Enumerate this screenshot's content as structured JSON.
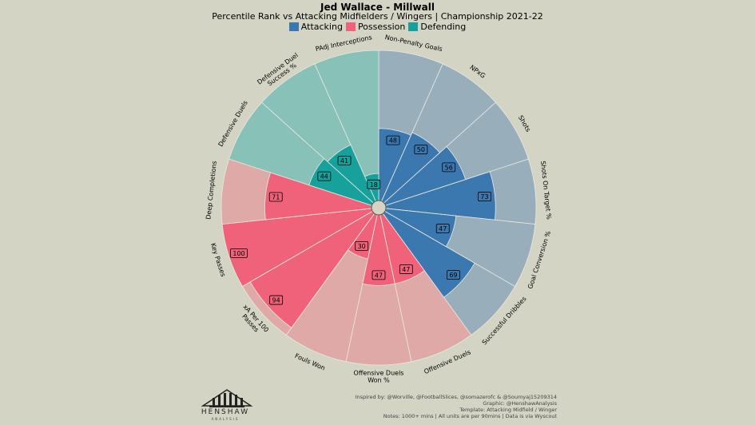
{
  "title": "Jed Wallace - Millwall",
  "subtitle": "Percentile Rank vs Attacking Midfielders / Wingers | Championship 2021-22",
  "legend": [
    {
      "label": "Attacking",
      "color": "#3c78b0"
    },
    {
      "label": "Possession",
      "color": "#f0627a"
    },
    {
      "label": "Defending",
      "color": "#16a19c"
    }
  ],
  "colors": {
    "background": "#d3d4c4",
    "attacking_bar": "#3c78b0",
    "attacking_bg": "#99aebb",
    "possession_bar": "#f0627a",
    "possession_bg": "#dfa9a8",
    "defending_bar": "#16a19c",
    "defending_bg": "#88c1b7"
  },
  "chart_data": {
    "type": "pizza",
    "title": "Jed Wallace - Millwall",
    "subtitle": "Percentile Rank vs Attacking Midfielders / Wingers | Championship 2021-22",
    "range": [
      0,
      100
    ],
    "params": [
      {
        "name": "Non-Penalty Goals",
        "value": 48,
        "group": "Attacking"
      },
      {
        "name": "NPxG",
        "value": 50,
        "group": "Attacking"
      },
      {
        "name": "Shots",
        "value": 56,
        "group": "Attacking"
      },
      {
        "name": "Shots On Target %",
        "value": 73,
        "group": "Attacking"
      },
      {
        "name": "Goal Conversion %",
        "value": 47,
        "group": "Attacking"
      },
      {
        "name": "Successful Dribbles",
        "value": 69,
        "group": "Attacking"
      },
      {
        "name": "Offensive Duels",
        "value": 47,
        "group": "Possession"
      },
      {
        "name": "Offensive Duels\nWon %",
        "value": 47,
        "group": "Possession"
      },
      {
        "name": "Fouls Won",
        "value": 30,
        "group": "Possession"
      },
      {
        "name": "xA Per 100\nPasses",
        "value": 94,
        "group": "Possession"
      },
      {
        "name": "Key Passes",
        "value": 100,
        "group": "Possession"
      },
      {
        "name": "Deep Completions",
        "value": 71,
        "group": "Possession"
      },
      {
        "name": "Defensive Duels",
        "value": 44,
        "group": "Defending"
      },
      {
        "name": "Defensive Duel\nSuccess %",
        "value": 41,
        "group": "Defending"
      },
      {
        "name": "PAdj Interceptions",
        "value": 18,
        "group": "Defending"
      }
    ]
  },
  "logo": {
    "name": "HENSHAW",
    "sub": "ANALYSIS"
  },
  "credits": [
    "Inspired by: @Worville, @FootballSlices, @somazerofc & @Soumyaj15209314",
    "Graphic: @HenshawAnalysis",
    "Template: Attacking Midfield / Winger",
    "Notes: 1000+ mins | All units are per 90mins | Data is via Wyscout"
  ]
}
